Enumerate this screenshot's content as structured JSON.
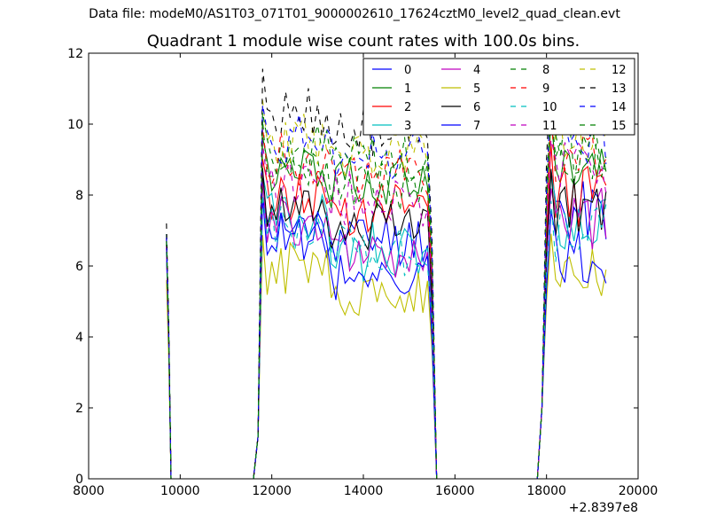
{
  "chart_data": {
    "type": "line",
    "suptitle": "Data file: modeM0/AS1T03_071T01_9000002610_17624cztM0_level2_quad_clean.evt",
    "title": "Quadrant 1 module wise count rates with 100.0s bins.",
    "xlabel": "",
    "ylabel": "",
    "xlim": [
      8000,
      20000
    ],
    "ylim": [
      0,
      12
    ],
    "x_offset_label": "+2.8397e8",
    "xticks": [
      8000,
      10000,
      12000,
      14000,
      16000,
      18000,
      20000
    ],
    "yticks": [
      0,
      2,
      4,
      6,
      8,
      10,
      12
    ],
    "grid": false,
    "legend_position": "top-right",
    "legend_columns": 4,
    "segments": [
      {
        "start": 9700,
        "end": 9800
      },
      {
        "start": 11600,
        "end": 15600
      },
      {
        "start": 17800,
        "end": 19300
      }
    ],
    "gaps": [
      {
        "start": 9800,
        "end": 11600
      },
      {
        "start": 15600,
        "end": 17800
      }
    ],
    "series": [
      {
        "name": "0",
        "color": "#0000ff",
        "dash": "solid",
        "spike": 6.9,
        "rate_a": 7.0,
        "rate_b": 6.8,
        "rate_c": 7.5,
        "seed": 11
      },
      {
        "name": "1",
        "color": "#008000",
        "dash": "solid",
        "spike": 6.8,
        "rate_a": 8.6,
        "rate_b": 8.4,
        "rate_c": 8.9,
        "seed": 12
      },
      {
        "name": "2",
        "color": "#ff0000",
        "dash": "solid",
        "spike": 6.7,
        "rate_a": 7.9,
        "rate_b": 7.7,
        "rate_c": 8.0,
        "seed": 13
      },
      {
        "name": "3",
        "color": "#00bfbf",
        "dash": "solid",
        "spike": 6.6,
        "rate_a": 7.4,
        "rate_b": 6.4,
        "rate_c": 7.1,
        "seed": 14
      },
      {
        "name": "4",
        "color": "#bf00bf",
        "dash": "solid",
        "spike": 6.5,
        "rate_a": 7.2,
        "rate_b": 6.2,
        "rate_c": 7.3,
        "seed": 15
      },
      {
        "name": "5",
        "color": "#bfbf00",
        "dash": "solid",
        "spike": 5.6,
        "rate_a": 5.9,
        "rate_b": 5.2,
        "rate_c": 5.9,
        "seed": 16
      },
      {
        "name": "6",
        "color": "#000000",
        "dash": "solid",
        "spike": 6.6,
        "rate_a": 7.7,
        "rate_b": 7.1,
        "rate_c": 7.6,
        "seed": 17
      },
      {
        "name": "7",
        "color": "#0000ff",
        "dash": "solid",
        "spike": 6.4,
        "rate_a": 6.8,
        "rate_b": 5.6,
        "rate_c": 6.3,
        "seed": 18
      },
      {
        "name": "8",
        "color": "#008000",
        "dash": "dashed",
        "spike": 6.9,
        "rate_a": 8.9,
        "rate_b": 8.2,
        "rate_c": 9.0,
        "seed": 19
      },
      {
        "name": "9",
        "color": "#ff0000",
        "dash": "dashed",
        "spike": 6.8,
        "rate_a": 9.0,
        "rate_b": 8.5,
        "rate_c": 8.8,
        "seed": 20
      },
      {
        "name": "10",
        "color": "#00bfbf",
        "dash": "dashed",
        "spike": 6.7,
        "rate_a": 7.0,
        "rate_b": 6.5,
        "rate_c": 7.0,
        "seed": 21
      },
      {
        "name": "11",
        "color": "#bf00bf",
        "dash": "dashed",
        "spike": 6.6,
        "rate_a": 8.4,
        "rate_b": 7.9,
        "rate_c": 8.6,
        "seed": 22
      },
      {
        "name": "12",
        "color": "#bfbf00",
        "dash": "dashed",
        "spike": 6.8,
        "rate_a": 9.5,
        "rate_b": 9.1,
        "rate_c": 9.6,
        "seed": 23
      },
      {
        "name": "13",
        "color": "#000000",
        "dash": "dashed",
        "spike": 7.2,
        "rate_a": 10.3,
        "rate_b": 9.7,
        "rate_c": 10.6,
        "seed": 24
      },
      {
        "name": "14",
        "color": "#0000ff",
        "dash": "dashed",
        "spike": 6.8,
        "rate_a": 9.6,
        "rate_b": 9.2,
        "rate_c": 9.7,
        "seed": 25
      },
      {
        "name": "15",
        "color": "#008000",
        "dash": "dashed",
        "spike": 6.7,
        "rate_a": 9.3,
        "rate_b": 9.0,
        "rate_c": 9.4,
        "seed": 26
      }
    ]
  }
}
